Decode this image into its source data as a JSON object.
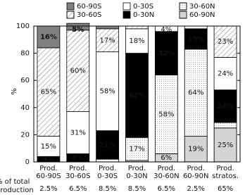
{
  "chart_data": {
    "type": "stacked_bar",
    "y_label": "%",
    "categories": [
      [
        "Prod.",
        "60-90S"
      ],
      [
        "Prod.",
        "30-60S"
      ],
      [
        "Prod.",
        "0-30S"
      ],
      [
        "Prod.",
        "0-30N"
      ],
      [
        "Prod.",
        "30-60N"
      ],
      [
        "Prod.",
        "60-90N"
      ],
      [
        "Prod.",
        "stratos."
      ]
    ],
    "row_label": [
      "% of total",
      "production"
    ],
    "shares": [
      "2.5%",
      "6.5%",
      "8.5%",
      "8.5%",
      "6.5%",
      "2.5%",
      "65%"
    ],
    "ylim": [
      0,
      100
    ],
    "yticks": [
      0,
      20,
      40,
      60,
      80,
      100
    ],
    "series": [
      {
        "name": "60-90S",
        "color": "#808080",
        "pattern": "solid",
        "label_color": "#ffffff",
        "values": [
          16,
          5,
          2,
          0,
          0,
          0,
          0
        ],
        "value_labels": [
          "16%",
          "5%",
          null,
          null,
          null,
          null,
          null
        ]
      },
      {
        "name": "30-60S",
        "color": "#ffffff",
        "pattern": "hatch",
        "label_color": "#333333",
        "values": [
          65,
          60,
          17,
          2,
          0,
          0,
          23
        ],
        "value_labels": [
          "65%",
          "60%",
          "17%",
          null,
          null,
          null,
          "23%"
        ]
      },
      {
        "name": "0-30S",
        "color": "#ffffff",
        "pattern": "solid",
        "label_color": "#333333",
        "values": [
          15,
          31,
          58,
          18,
          4,
          2,
          24
        ],
        "value_labels": [
          "15%",
          "31%",
          "58%",
          "18%",
          "4%",
          null,
          "24%"
        ]
      },
      {
        "name": "0-30N",
        "color": "#000000",
        "pattern": "solid",
        "label_color": "#ffffff",
        "values": [
          4,
          6,
          21,
          62,
          32,
          15,
          24
        ],
        "value_labels": [
          "4%",
          "6%",
          "21%",
          "62%",
          "32%",
          "15%",
          "24%"
        ]
      },
      {
        "name": "30-60N",
        "color": "#ffffff",
        "pattern": "dots",
        "label_color": "#333333",
        "values": [
          0,
          0,
          2,
          17,
          58,
          64,
          4
        ],
        "value_labels": [
          null,
          null,
          null,
          "17%",
          "58%",
          "64%",
          null
        ]
      },
      {
        "name": "60-90N",
        "color": "#ffffff",
        "pattern": "dense-dots",
        "label_color": "#111111",
        "values": [
          0,
          0,
          0,
          1,
          6,
          19,
          25
        ],
        "value_labels": [
          null,
          null,
          null,
          null,
          "6%",
          "19%",
          "25%"
        ]
      }
    ]
  }
}
